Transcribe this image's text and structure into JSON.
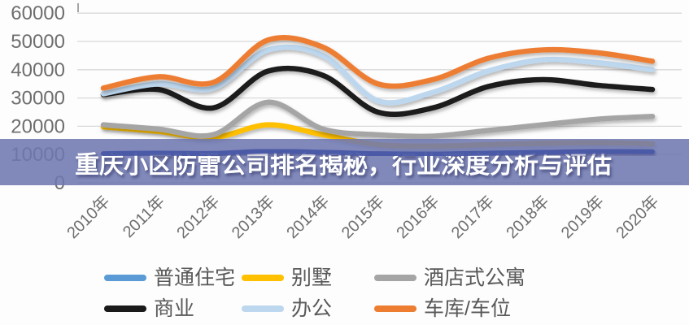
{
  "title_banner": {
    "text": "重庆小区防雷公司排名揭秘，行业深度分析与评估",
    "background_color": "#6e77b1",
    "text_color": "#ffffff",
    "highlighted_line_color": "#4a58a6"
  },
  "chart_data": {
    "type": "line",
    "smooth": true,
    "title": "",
    "xlabel": "",
    "ylabel": "",
    "grid": true,
    "legend_position": "bottom",
    "ylim": [
      0,
      60000
    ],
    "ytick_step": 10000,
    "ytick_labels": [
      "0",
      "10000",
      "20000",
      "30000",
      "40000",
      "50000",
      "60000"
    ],
    "axis_label_color": "#6e6e6e",
    "gridline_color": "#d9d9d9",
    "categories": [
      "2010年",
      "2011年",
      "2012年",
      "2013年",
      "2014年",
      "2015年",
      "2016年",
      "2017年",
      "2018年",
      "2019年",
      "2020年"
    ],
    "series": [
      {
        "id": "ordinary-housing",
        "name": "普通住宅",
        "color": "#5B9BD5",
        "values": [
          10300,
          10500,
          10400,
          11200,
          10800,
          10300,
          10200,
          10500,
          10800,
          11100,
          11000
        ]
      },
      {
        "id": "villa",
        "name": "别墅",
        "color": "#FFC000",
        "values": [
          19800,
          18200,
          16000,
          20500,
          17000,
          13500,
          13000,
          13500,
          14000,
          14200,
          13800
        ]
      },
      {
        "id": "hotel-style-apartment",
        "name": "酒店式公寓",
        "color": "#A5A5A5",
        "values": [
          20500,
          19000,
          17000,
          28500,
          19000,
          17000,
          16500,
          18500,
          20500,
          22500,
          23500
        ]
      },
      {
        "id": "commercial",
        "name": "商业",
        "color": "#1A1A1A",
        "values": [
          31200,
          33000,
          26500,
          39500,
          38000,
          25000,
          26500,
          34000,
          36500,
          34500,
          33000
        ]
      },
      {
        "id": "office",
        "name": "办公",
        "color": "#BDD7EE",
        "values": [
          31500,
          35000,
          33500,
          47000,
          45000,
          29000,
          32000,
          39500,
          43500,
          42500,
          40000
        ]
      },
      {
        "id": "garage-parking",
        "name": "车库/车位",
        "color": "#ED7D31",
        "values": [
          33500,
          37500,
          35500,
          50500,
          48000,
          35000,
          36500,
          44000,
          47000,
          46000,
          43000
        ]
      }
    ]
  }
}
